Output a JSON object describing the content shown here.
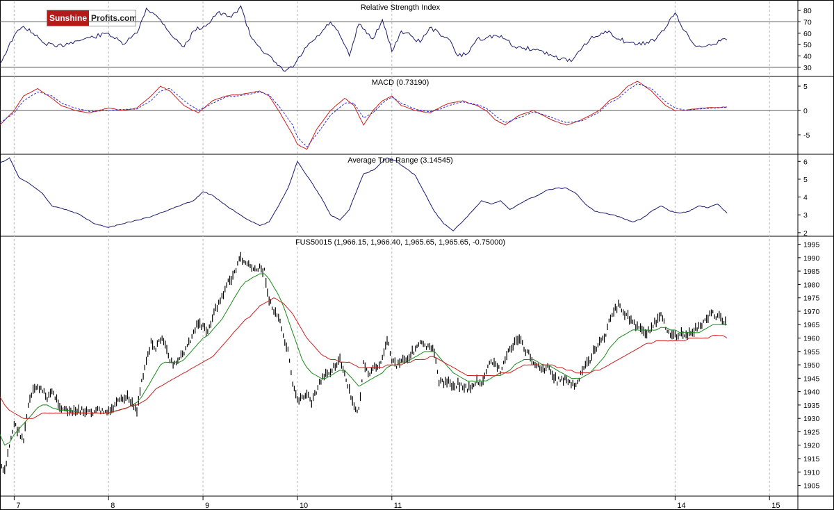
{
  "logo": {
    "part1": "Sunshine",
    "part2": "Profits.com"
  },
  "colors": {
    "indicator": "#1a1a6e",
    "price": "#000000",
    "ma_fast": "#1a8a1a",
    "ma_slow": "#cc1f1f",
    "macd_signal": "#2a2ad0",
    "grid": "#b8b8b8"
  },
  "chart_data": [
    {
      "type": "line",
      "title": "Relative Strength Index",
      "ylim": [
        22,
        88
      ],
      "yticks": [
        80,
        70,
        60,
        50,
        40,
        30
      ],
      "reference_lines": [
        70,
        30
      ],
      "x": [
        6.85,
        7.0,
        7.1,
        7.2,
        7.3,
        7.45,
        7.6,
        7.8,
        8.0,
        8.15,
        8.3,
        8.4,
        8.55,
        8.7,
        8.8,
        8.9,
        9.05,
        9.15,
        9.3,
        9.4,
        9.5,
        9.6,
        9.75,
        9.85,
        9.95,
        10.1,
        10.25,
        10.35,
        10.45,
        10.55,
        10.65,
        10.8,
        10.9,
        11.0,
        11.1,
        11.2,
        11.3,
        11.4,
        11.5,
        11.6,
        11.7,
        11.8,
        11.9,
        12.0,
        12.1,
        12.2,
        12.3,
        12.4,
        12.5,
        12.6,
        12.7,
        12.8,
        12.9,
        13.0,
        13.1,
        13.2,
        13.3,
        13.4,
        13.5,
        13.6,
        13.7,
        13.8,
        13.9,
        14.0,
        14.1,
        14.2,
        14.3,
        14.4,
        14.5,
        14.55
      ],
      "series": [
        {
          "values": [
            33,
            58,
            66,
            60,
            52,
            48,
            52,
            56,
            60,
            50,
            60,
            82,
            72,
            55,
            48,
            62,
            68,
            78,
            74,
            84,
            58,
            48,
            35,
            27,
            30,
            48,
            60,
            70,
            58,
            40,
            68,
            55,
            72,
            44,
            62,
            58,
            52,
            65,
            60,
            55,
            40,
            42,
            55,
            56,
            58,
            55,
            48,
            47,
            46,
            44,
            40,
            38,
            35,
            45,
            55,
            58,
            62,
            55,
            52,
            50,
            52,
            55,
            65,
            78,
            62,
            50,
            48,
            50,
            55,
            54
          ]
        }
      ]
    },
    {
      "type": "line",
      "title": "MACD (0.73190)",
      "ylim": [
        -9,
        7
      ],
      "yticks": [
        5,
        0,
        -5
      ],
      "reference_lines": [
        0
      ],
      "x": [
        6.85,
        7.0,
        7.1,
        7.25,
        7.4,
        7.5,
        7.65,
        7.8,
        8.0,
        8.15,
        8.3,
        8.45,
        8.55,
        8.65,
        8.8,
        8.95,
        9.1,
        9.25,
        9.45,
        9.6,
        9.7,
        9.8,
        9.95,
        10.0,
        10.1,
        10.2,
        10.35,
        10.5,
        10.6,
        10.7,
        10.8,
        10.9,
        11.0,
        11.1,
        11.25,
        11.4,
        11.5,
        11.6,
        11.75,
        11.9,
        12.0,
        12.1,
        12.2,
        12.35,
        12.5,
        12.6,
        12.7,
        12.85,
        13.0,
        13.1,
        13.2,
        13.3,
        13.4,
        13.5,
        13.6,
        13.75,
        13.9,
        14.0,
        14.1,
        14.2,
        14.3,
        14.4,
        14.55
      ],
      "series": [
        {
          "name": "MACD",
          "values": [
            -3,
            0,
            3,
            4.5,
            2.5,
            1,
            0,
            -0.5,
            0.5,
            0,
            0.5,
            3,
            5,
            4,
            1,
            -0.5,
            2,
            3,
            3.5,
            4,
            3,
            0,
            -5,
            -7,
            -8,
            -4,
            0,
            2.5,
            1,
            -3,
            0,
            2,
            3,
            1,
            0,
            -0.5,
            0.5,
            1.5,
            2,
            1,
            0,
            -2,
            -3,
            -1,
            0,
            -1,
            -2,
            -3,
            -2,
            -1,
            0,
            2,
            3,
            5,
            6,
            4,
            1,
            0,
            0,
            0.3,
            0.5,
            0.6,
            0.73
          ]
        },
        {
          "name": "Signal",
          "values": [
            -2.5,
            -0.5,
            2,
            3.8,
            3,
            1.5,
            0.5,
            -0.2,
            0,
            0.2,
            0.3,
            2,
            4,
            4.5,
            2,
            0,
            1.5,
            2.8,
            3.2,
            3.8,
            3.2,
            1,
            -3,
            -5.5,
            -7.5,
            -5,
            -1,
            1.5,
            1.5,
            -1.5,
            -0.5,
            1.5,
            2.8,
            1.5,
            0.3,
            -0.3,
            0.2,
            1,
            1.8,
            1.2,
            0.5,
            -1.2,
            -2.5,
            -1.5,
            -0.3,
            -0.8,
            -1.5,
            -2.5,
            -2.2,
            -1.3,
            -0.3,
            1.5,
            2.5,
            4.2,
            5.5,
            4.5,
            1.8,
            0.5,
            0.1,
            0.2,
            0.4,
            0.5,
            0.6
          ]
        }
      ]
    },
    {
      "type": "line",
      "title": "Average True Range (3.14545)",
      "ylim": [
        1.8,
        6.4
      ],
      "yticks": [
        6,
        5,
        4,
        3,
        2
      ],
      "x": [
        6.85,
        6.95,
        7.05,
        7.15,
        7.3,
        7.4,
        7.55,
        7.7,
        7.85,
        8.0,
        8.15,
        8.3,
        8.45,
        8.6,
        8.75,
        8.9,
        9.0,
        9.1,
        9.25,
        9.45,
        9.6,
        9.7,
        9.8,
        9.9,
        10.0,
        10.1,
        10.25,
        10.35,
        10.45,
        10.55,
        10.6,
        10.7,
        10.8,
        10.95,
        11.05,
        11.15,
        11.25,
        11.35,
        11.45,
        11.55,
        11.65,
        11.8,
        11.95,
        12.05,
        12.15,
        12.25,
        12.35,
        12.45,
        12.55,
        12.65,
        12.75,
        12.85,
        12.95,
        13.05,
        13.15,
        13.25,
        13.35,
        13.45,
        13.55,
        13.65,
        13.75,
        13.85,
        13.95,
        14.05,
        14.15,
        14.25,
        14.35,
        14.45,
        14.55
      ],
      "series": [
        {
          "values": [
            5.9,
            6.2,
            5.1,
            4.8,
            4.2,
            3.5,
            3.3,
            3.0,
            2.5,
            2.3,
            2.5,
            2.7,
            2.9,
            3.2,
            3.5,
            3.8,
            4.3,
            4.1,
            3.5,
            2.8,
            2.4,
            2.6,
            3.5,
            4.5,
            6.0,
            5.2,
            4.0,
            3.0,
            2.7,
            3.3,
            4.0,
            5.3,
            5.5,
            6.2,
            6.0,
            5.6,
            5.2,
            4.2,
            3.2,
            2.5,
            2.1,
            2.9,
            3.8,
            3.6,
            3.8,
            3.3,
            3.6,
            3.9,
            4.1,
            4.4,
            4.5,
            4.5,
            4.2,
            3.6,
            3.2,
            3.1,
            3.0,
            2.8,
            2.6,
            2.8,
            3.2,
            3.5,
            3.2,
            3.1,
            3.2,
            3.5,
            3.4,
            3.6,
            3.1
          ]
        }
      ]
    },
    {
      "type": "line",
      "title": "FUS50015 (1,966.15, 1,966.40, 1,965.65, 1,965.65, -0.75000)",
      "ylim": [
        1901,
        1998
      ],
      "yticks": [
        1995,
        1990,
        1985,
        1980,
        1975,
        1970,
        1965,
        1960,
        1955,
        1950,
        1945,
        1940,
        1935,
        1930,
        1925,
        1920,
        1915,
        1910,
        1905
      ],
      "x_tick_labels": [
        "7",
        "8",
        "9",
        "10",
        "11",
        "14",
        "15"
      ],
      "x_tick_positions": [
        7,
        8,
        9,
        10,
        11,
        14,
        15
      ],
      "xlim": [
        6.85,
        15.3
      ],
      "x": [
        6.85,
        6.9,
        6.95,
        7.0,
        7.05,
        7.1,
        7.15,
        7.2,
        7.25,
        7.3,
        7.35,
        7.4,
        7.5,
        7.6,
        7.7,
        7.8,
        7.9,
        8.0,
        8.1,
        8.2,
        8.25,
        8.3,
        8.35,
        8.4,
        8.45,
        8.5,
        8.55,
        8.6,
        8.65,
        8.7,
        8.75,
        8.8,
        8.85,
        8.9,
        8.95,
        9.0,
        9.05,
        9.1,
        9.15,
        9.2,
        9.25,
        9.3,
        9.35,
        9.4,
        9.45,
        9.5,
        9.55,
        9.6,
        9.65,
        9.7,
        9.75,
        9.8,
        9.85,
        9.9,
        9.95,
        10.0,
        10.05,
        10.1,
        10.15,
        10.2,
        10.25,
        10.3,
        10.35,
        10.4,
        10.45,
        10.5,
        10.55,
        10.6,
        10.65,
        10.7,
        10.75,
        10.8,
        10.85,
        10.9,
        10.95,
        11.0,
        11.05,
        11.1,
        11.15,
        11.2,
        11.25,
        11.3,
        11.35,
        11.4,
        11.45,
        11.5,
        11.55,
        11.6,
        11.65,
        11.7,
        11.75,
        11.8,
        11.85,
        11.9,
        11.95,
        12.0,
        12.05,
        12.1,
        12.15,
        12.2,
        12.25,
        12.3,
        12.35,
        12.4,
        12.45,
        12.5,
        12.55,
        12.6,
        12.65,
        12.7,
        12.75,
        12.8,
        12.85,
        12.9,
        12.95,
        13.0,
        13.05,
        13.1,
        13.15,
        13.2,
        13.25,
        13.3,
        13.35,
        13.4,
        13.45,
        13.5,
        13.55,
        13.6,
        13.65,
        13.7,
        13.75,
        13.8,
        13.85,
        13.9,
        13.95,
        14.0,
        14.05,
        14.1,
        14.15,
        14.2,
        14.25,
        14.3,
        14.35,
        14.4,
        14.45,
        14.5,
        14.55
      ],
      "series": [
        {
          "name": "Price",
          "values": [
            1912,
            1910,
            1920,
            1928,
            1925,
            1922,
            1935,
            1940,
            1942,
            1940,
            1938,
            1940,
            1934,
            1932,
            1933,
            1932,
            1933,
            1932,
            1936,
            1938,
            1936,
            1933,
            1944,
            1952,
            1958,
            1956,
            1960,
            1957,
            1952,
            1950,
            1952,
            1955,
            1958,
            1962,
            1966,
            1964,
            1962,
            1968,
            1972,
            1975,
            1980,
            1982,
            1986,
            1990,
            1988,
            1987,
            1985,
            1986,
            1985,
            1974,
            1970,
            1968,
            1960,
            1955,
            1942,
            1937,
            1938,
            1939,
            1936,
            1940,
            1944,
            1946,
            1948,
            1950,
            1952,
            1946,
            1940,
            1934,
            1933,
            1950,
            1946,
            1948,
            1950,
            1952,
            1960,
            1952,
            1950,
            1952,
            1952,
            1954,
            1956,
            1958,
            1957,
            1956,
            1955,
            1944,
            1943,
            1944,
            1942,
            1943,
            1942,
            1941,
            1942,
            1944,
            1942,
            1948,
            1951,
            1950,
            1948,
            1952,
            1956,
            1958,
            1960,
            1956,
            1954,
            1951,
            1950,
            1948,
            1950,
            1946,
            1944,
            1945,
            1944,
            1943,
            1942,
            1946,
            1950,
            1952,
            1956,
            1958,
            1960,
            1966,
            1970,
            1972,
            1970,
            1968,
            1966,
            1964,
            1963,
            1962,
            1964,
            1966,
            1968,
            1964,
            1962,
            1961,
            1962,
            1960,
            1962,
            1963,
            1964,
            1966,
            1968,
            1969,
            1968,
            1967,
            1966
          ]
        },
        {
          "name": "MA fast",
          "values": [
            1924,
            1920,
            1921,
            1924,
            1926,
            1928,
            1930,
            1932,
            1934,
            1935,
            1935,
            1934,
            1933,
            1933,
            1932,
            1932,
            1932,
            1932,
            1933,
            1934,
            1935,
            1936,
            1938,
            1941,
            1944,
            1947,
            1950,
            1951,
            1951,
            1951,
            1951,
            1952,
            1954,
            1956,
            1958,
            1960,
            1961,
            1963,
            1965,
            1967,
            1970,
            1973,
            1976,
            1979,
            1981,
            1982,
            1983,
            1984,
            1984,
            1982,
            1979,
            1976,
            1972,
            1967,
            1962,
            1957,
            1952,
            1949,
            1947,
            1946,
            1945,
            1945,
            1946,
            1947,
            1948,
            1948,
            1946,
            1944,
            1942,
            1943,
            1944,
            1945,
            1946,
            1947,
            1949,
            1950,
            1950,
            1951,
            1951,
            1952,
            1953,
            1954,
            1955,
            1955,
            1955,
            1953,
            1951,
            1949,
            1947,
            1946,
            1945,
            1944,
            1944,
            1944,
            1944,
            1944,
            1945,
            1946,
            1946,
            1947,
            1948,
            1950,
            1951,
            1952,
            1952,
            1952,
            1951,
            1950,
            1950,
            1949,
            1948,
            1947,
            1946,
            1945,
            1945,
            1945,
            1946,
            1947,
            1949,
            1951,
            1953,
            1956,
            1958,
            1960,
            1961,
            1962,
            1963,
            1963,
            1963,
            1963,
            1963,
            1963,
            1964,
            1964,
            1963,
            1963,
            1962,
            1962,
            1962,
            1962,
            1962,
            1963,
            1964,
            1965,
            1965,
            1965,
            1965
          ]
        },
        {
          "name": "MA slow",
          "values": [
            1938,
            1935,
            1933,
            1932,
            1931,
            1930,
            1930,
            1930,
            1931,
            1932,
            1932,
            1932,
            1932,
            1932,
            1932,
            1932,
            1932,
            1932,
            1933,
            1934,
            1935,
            1935,
            1936,
            1937,
            1939,
            1941,
            1942,
            1943,
            1944,
            1945,
            1946,
            1947,
            1948,
            1949,
            1950,
            1951,
            1952,
            1953,
            1955,
            1957,
            1959,
            1961,
            1963,
            1965,
            1967,
            1968,
            1970,
            1972,
            1973,
            1974,
            1975,
            1974,
            1973,
            1971,
            1969,
            1966,
            1963,
            1960,
            1958,
            1956,
            1954,
            1953,
            1952,
            1952,
            1951,
            1951,
            1951,
            1950,
            1949,
            1949,
            1949,
            1949,
            1949,
            1949,
            1950,
            1950,
            1950,
            1950,
            1951,
            1951,
            1952,
            1952,
            1952,
            1953,
            1953,
            1952,
            1951,
            1950,
            1949,
            1948,
            1947,
            1946,
            1946,
            1946,
            1946,
            1946,
            1946,
            1946,
            1947,
            1947,
            1947,
            1948,
            1949,
            1950,
            1950,
            1950,
            1950,
            1950,
            1950,
            1950,
            1949,
            1949,
            1948,
            1948,
            1947,
            1947,
            1947,
            1947,
            1948,
            1948,
            1949,
            1950,
            1951,
            1952,
            1953,
            1954,
            1955,
            1956,
            1957,
            1958,
            1958,
            1959,
            1959,
            1959,
            1959,
            1959,
            1959,
            1959,
            1960,
            1960,
            1960,
            1960,
            1960,
            1961,
            1961,
            1961,
            1960
          ]
        }
      ]
    }
  ]
}
